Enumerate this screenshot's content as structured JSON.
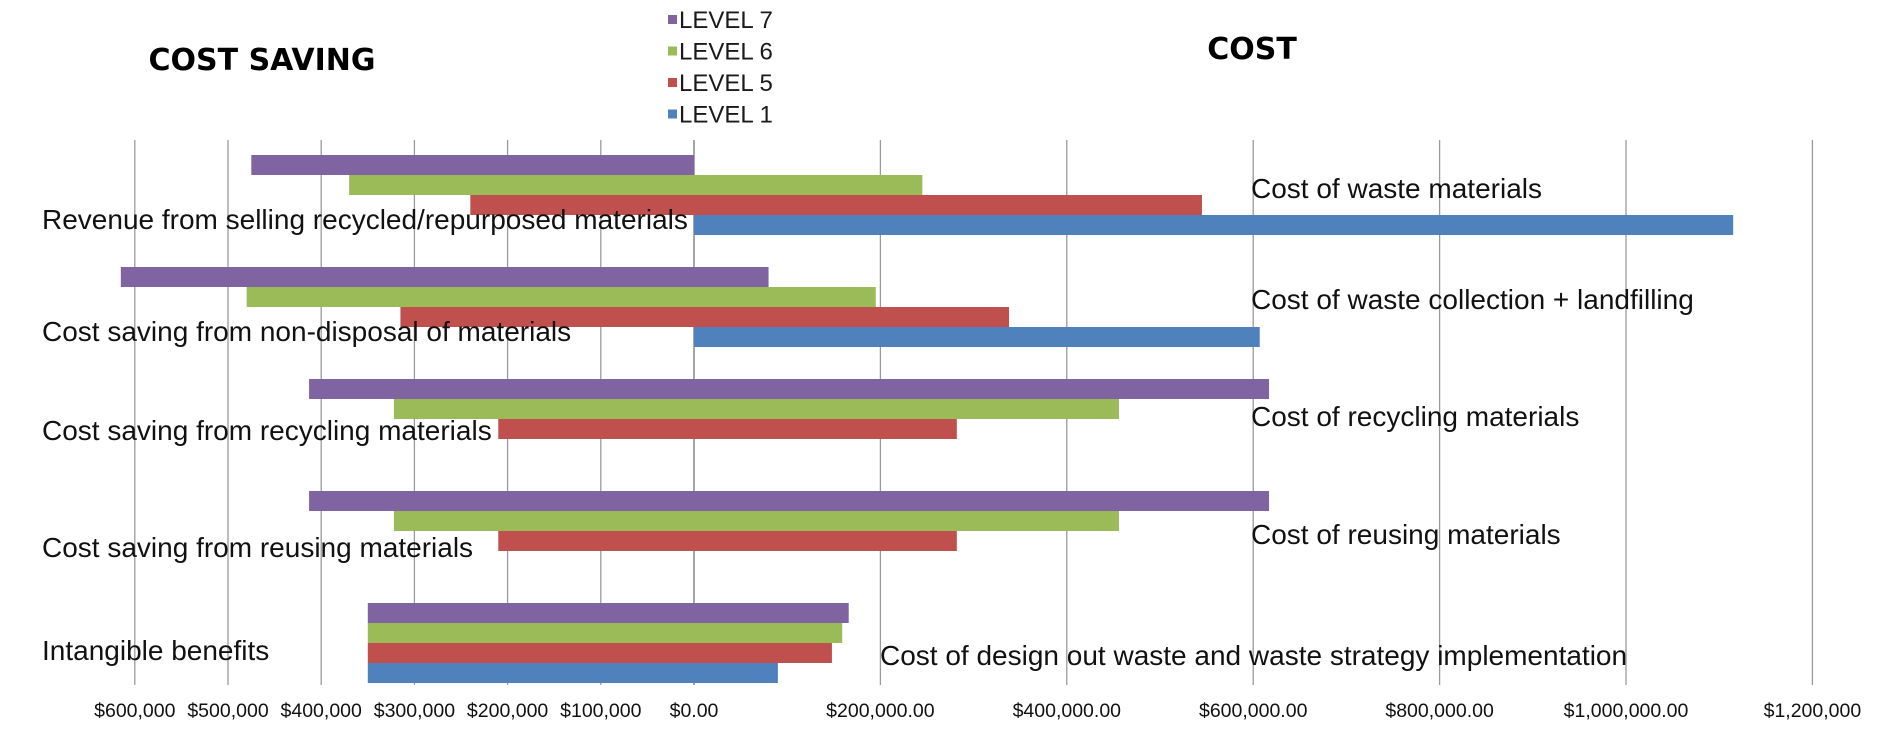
{
  "chart_data": {
    "type": "bar",
    "orientation": "horizontal",
    "title_left": "COST SAVING",
    "title_right": "COST",
    "colors": {
      "LEVEL 7": "#8064a2",
      "LEVEL 6": "#9bbb59",
      "LEVEL 5": "#c0504d",
      "LEVEL 1": "#4f81bd"
    },
    "legend": {
      "position": "top-center",
      "items": [
        "LEVEL 7",
        "LEVEL 6",
        "LEVEL 5",
        "LEVEL 1"
      ]
    },
    "grid": true,
    "xlim_saving": [
      600000,
      0
    ],
    "xlim_cost": [
      0,
      1200000
    ],
    "x_tick_labels_saving": [
      "$600,000",
      "$500,000",
      "$400,000",
      "$300,000",
      "$200,000",
      "$100,000"
    ],
    "x_tick_labels_cost": [
      "$0.00",
      "$200,000.00",
      "$400,000.00",
      "$600,000.00",
      "$800,000.00",
      "$1,000,000.00",
      "$1,200,000"
    ],
    "groups": [
      {
        "saving_label": "Revenue from selling recycled/repurposed materials",
        "cost_label": "Cost of waste materials",
        "series": {
          "LEVEL 7": {
            "saving": 475000,
            "cost": 0
          },
          "LEVEL 6": {
            "saving": 370000,
            "cost": 245000
          },
          "LEVEL 5": {
            "saving": 240000,
            "cost": 545000
          },
          "LEVEL 1": {
            "saving": 0,
            "cost": 1115000
          }
        }
      },
      {
        "saving_label": "Cost saving from non-disposal of materials",
        "cost_label": "Cost of waste collection + landfilling",
        "series": {
          "LEVEL 7": {
            "saving": 615000,
            "cost": 80000
          },
          "LEVEL 6": {
            "saving": 480000,
            "cost": 195000
          },
          "LEVEL 5": {
            "saving": 315000,
            "cost": 338000
          },
          "LEVEL 1": {
            "saving": 0,
            "cost": 607000
          }
        }
      },
      {
        "saving_label": "Cost saving from recycling materials",
        "cost_label": "Cost of recycling materials",
        "series": {
          "LEVEL 7": {
            "saving": 413000,
            "cost": 617000
          },
          "LEVEL 6": {
            "saving": 322000,
            "cost": 456000
          },
          "LEVEL 5": {
            "saving": 210000,
            "cost": 282000
          }
        }
      },
      {
        "saving_label": "Cost saving from reusing materials",
        "cost_label": "Cost of reusing materials",
        "series": {
          "LEVEL 7": {
            "saving": 413000,
            "cost": 617000
          },
          "LEVEL 6": {
            "saving": 322000,
            "cost": 456000
          },
          "LEVEL 5": {
            "saving": 210000,
            "cost": 282000
          }
        }
      },
      {
        "saving_label": "Intangible benefits",
        "cost_label": "Cost of design out waste and waste strategy implementation",
        "series": {
          "LEVEL 7": {
            "saving": 350000,
            "cost": 166000
          },
          "LEVEL 6": {
            "saving": 350000,
            "cost": 159000
          },
          "LEVEL 5": {
            "saving": 350000,
            "cost": 148000
          },
          "LEVEL 1": {
            "saving": 350000,
            "cost": 90000
          }
        }
      }
    ]
  }
}
